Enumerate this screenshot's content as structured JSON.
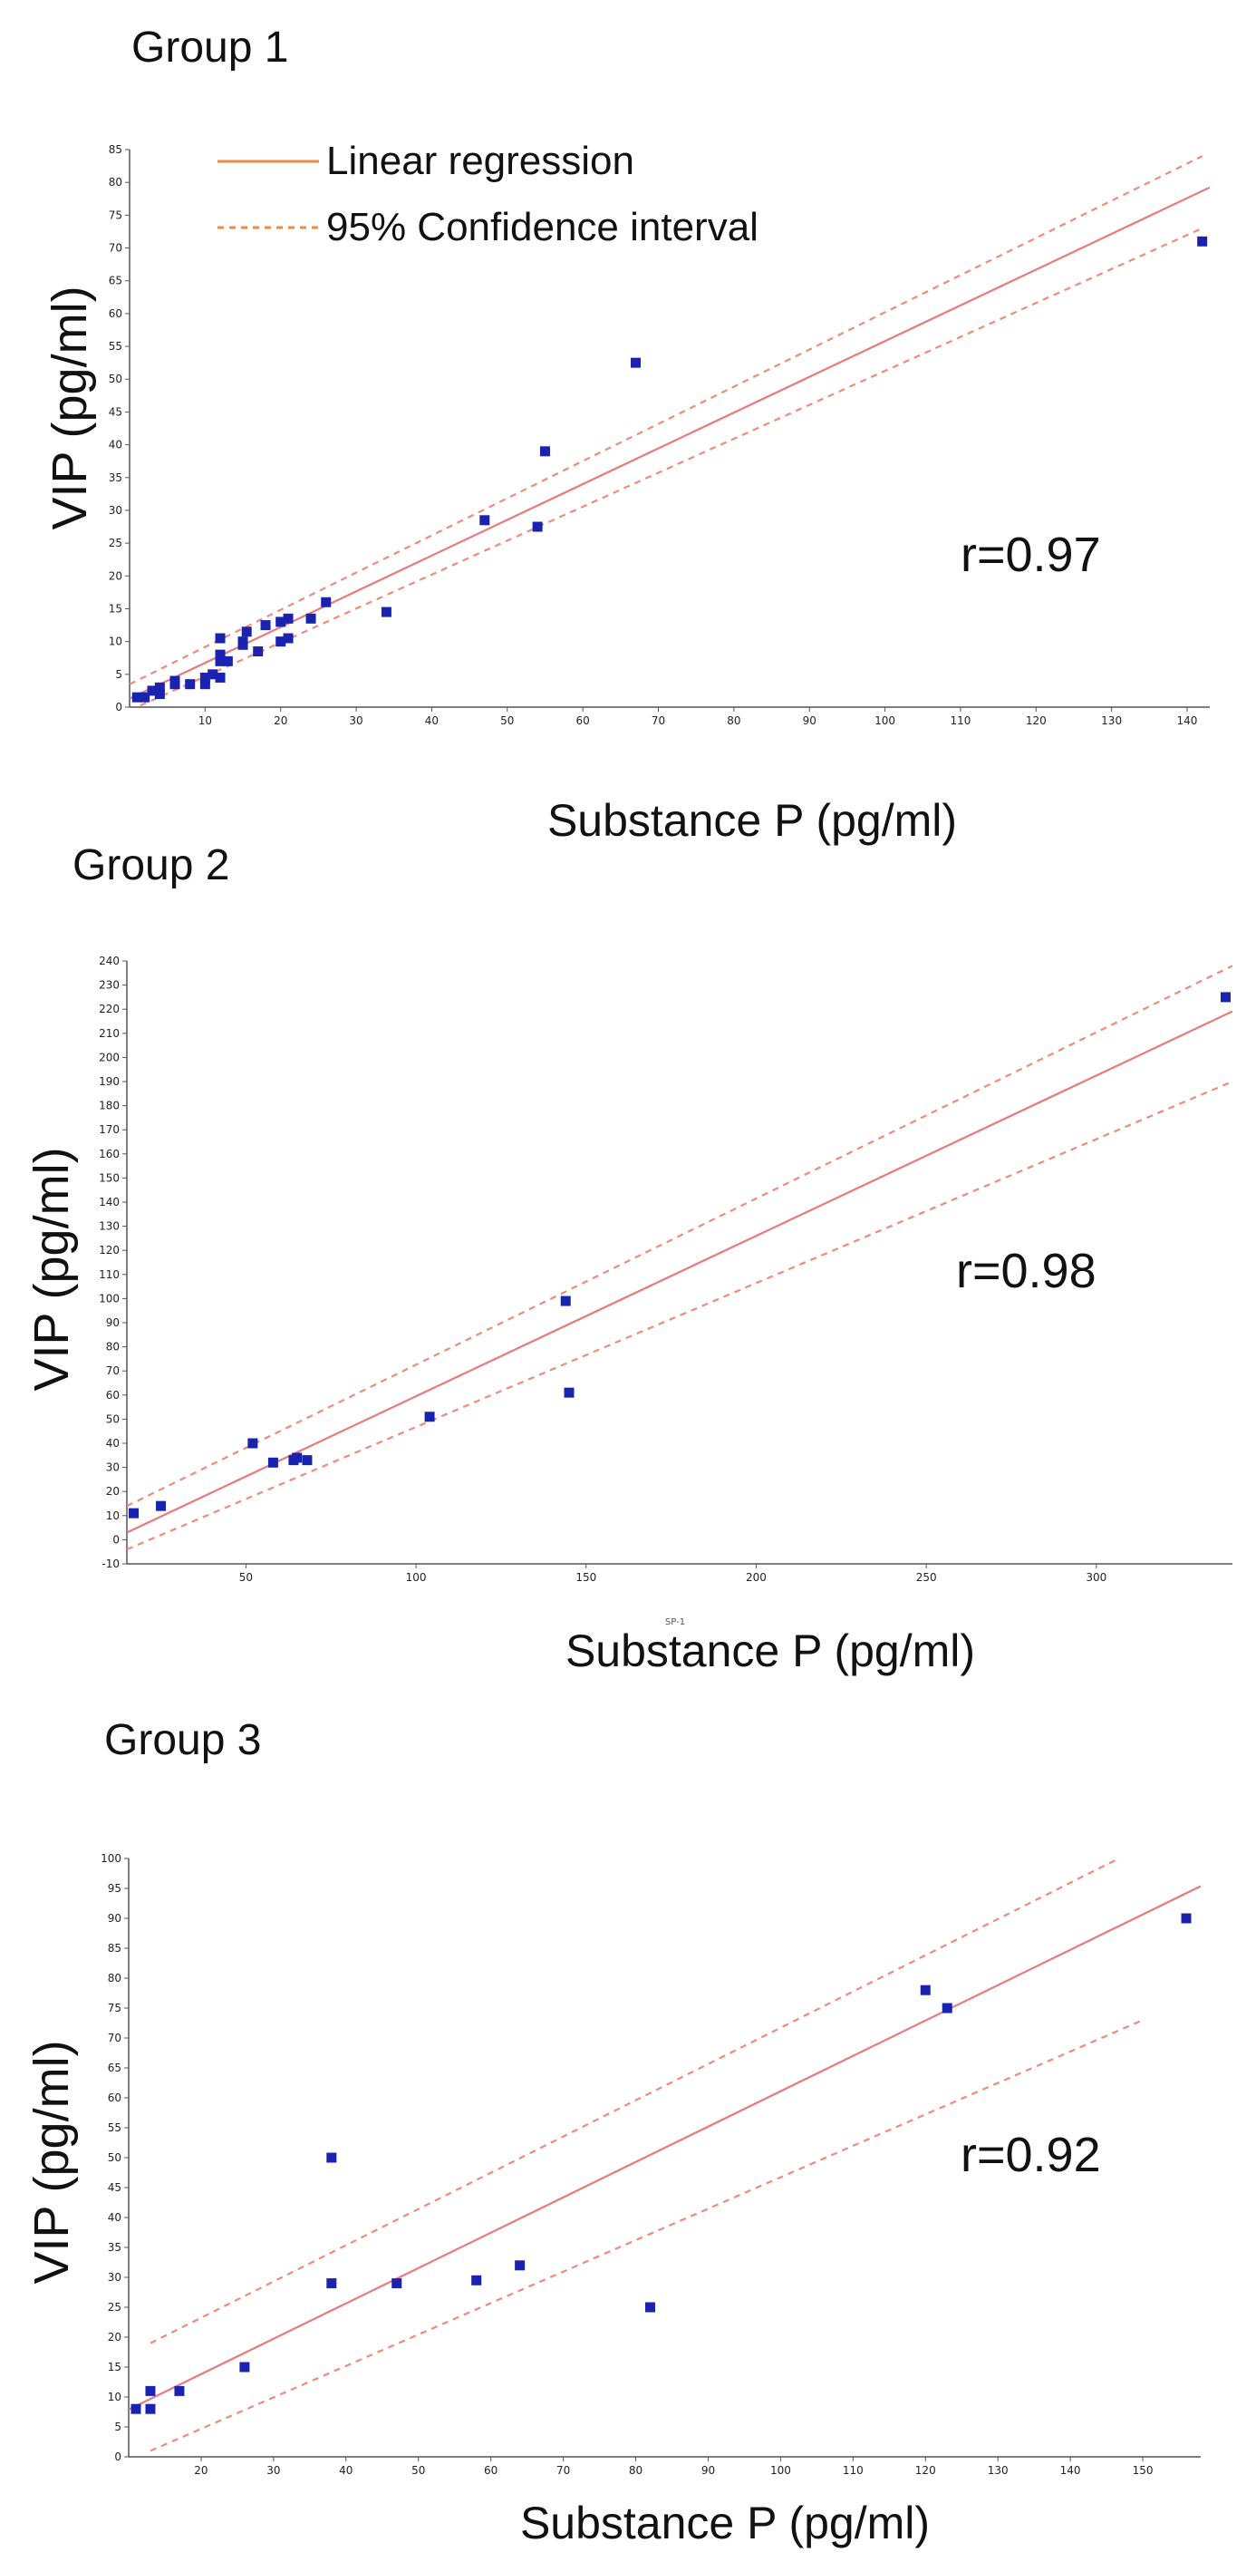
{
  "chart_data": [
    {
      "type": "scatter",
      "title": "Group 1",
      "xlabel": "Substance P (pg/ml)",
      "ylabel": "VIP (pg/ml)",
      "annotation": "r=0.97",
      "legend": {
        "position": "top-left",
        "entries": [
          "Linear regression",
          "95% Confidence interval"
        ]
      },
      "xlim": [
        0,
        143
      ],
      "ylim": [
        0,
        85
      ],
      "xticks": [
        10,
        20,
        30,
        40,
        50,
        60,
        70,
        80,
        90,
        100,
        110,
        120,
        130,
        140
      ],
      "yticks": [
        0,
        5,
        10,
        15,
        20,
        25,
        30,
        35,
        40,
        45,
        50,
        55,
        60,
        65,
        70,
        75,
        80,
        85
      ],
      "points": [
        [
          1,
          1.5
        ],
        [
          2,
          1.5
        ],
        [
          3,
          2.5
        ],
        [
          4,
          3
        ],
        [
          4,
          2
        ],
        [
          6,
          3.5
        ],
        [
          6,
          4
        ],
        [
          8,
          3.5
        ],
        [
          10,
          3.5
        ],
        [
          10,
          4.5
        ],
        [
          11,
          5
        ],
        [
          12,
          4.5
        ],
        [
          12,
          7
        ],
        [
          12,
          7.5
        ],
        [
          12,
          8
        ],
        [
          12,
          10.5
        ],
        [
          13,
          7
        ],
        [
          15,
          9.5
        ],
        [
          15,
          10
        ],
        [
          15.5,
          11.5
        ],
        [
          17,
          8.5
        ],
        [
          18,
          12.5
        ],
        [
          20,
          10
        ],
        [
          20,
          13
        ],
        [
          21,
          10.5
        ],
        [
          21,
          13.5
        ],
        [
          24,
          13.5
        ],
        [
          26,
          16
        ],
        [
          34,
          14.5
        ],
        [
          47,
          28.5
        ],
        [
          54,
          27.5
        ],
        [
          55,
          39
        ],
        [
          67,
          52.5
        ],
        [
          142,
          71
        ]
      ],
      "regression": {
        "slope": 0.545,
        "intercept": 1.3
      },
      "ci_upper": [
        [
          0,
          3.5
        ],
        [
          142,
          84
        ]
      ],
      "ci_lower": [
        [
          0,
          -0.5
        ],
        [
          142,
          73
        ]
      ]
    },
    {
      "type": "scatter",
      "title": "Group 2",
      "xlabel": "Substance P (pg/ml)",
      "xaxis_caption": "SP-1",
      "ylabel": "VIP (pg/ml)",
      "annotation": "r=0.98",
      "xlim": [
        15,
        340
      ],
      "ylim": [
        -10,
        240
      ],
      "xticks": [
        50,
        100,
        150,
        200,
        250,
        300
      ],
      "yticks": [
        -10,
        0,
        10,
        20,
        30,
        40,
        50,
        60,
        70,
        80,
        90,
        100,
        110,
        120,
        130,
        140,
        150,
        160,
        170,
        180,
        190,
        200,
        210,
        220,
        230,
        240
      ],
      "points": [
        [
          17,
          11
        ],
        [
          25,
          14
        ],
        [
          52,
          40
        ],
        [
          58,
          32
        ],
        [
          64,
          33
        ],
        [
          65,
          34
        ],
        [
          68,
          33
        ],
        [
          104,
          51
        ],
        [
          144,
          99
        ],
        [
          145,
          61
        ],
        [
          338,
          225
        ]
      ],
      "regression": {
        "slope": 0.665,
        "intercept": -7
      },
      "ci_upper": [
        [
          15,
          14
        ],
        [
          340,
          238
        ]
      ],
      "ci_lower": [
        [
          15,
          -4
        ],
        [
          340,
          190
        ]
      ]
    },
    {
      "type": "scatter",
      "title": "Group 3",
      "xlabel": "Substance P (pg/ml)",
      "ylabel": "VIP (pg/ml)",
      "annotation": "r=0.92",
      "xlim": [
        10,
        158
      ],
      "ylim": [
        0,
        100
      ],
      "xticks": [
        20,
        30,
        40,
        50,
        60,
        70,
        80,
        90,
        100,
        110,
        120,
        130,
        140,
        150
      ],
      "yticks": [
        0,
        5,
        10,
        15,
        20,
        25,
        30,
        35,
        40,
        45,
        50,
        55,
        60,
        65,
        70,
        75,
        80,
        85,
        90,
        95,
        100
      ],
      "points": [
        [
          11,
          8
        ],
        [
          13,
          8
        ],
        [
          13,
          11
        ],
        [
          17,
          11
        ],
        [
          26,
          15
        ],
        [
          38,
          50
        ],
        [
          38,
          29
        ],
        [
          47,
          29
        ],
        [
          58,
          29.5
        ],
        [
          64,
          32
        ],
        [
          82,
          25
        ],
        [
          120,
          78
        ],
        [
          123,
          75
        ],
        [
          156,
          90
        ]
      ],
      "regression": {
        "slope": 0.591,
        "intercept": 2
      },
      "ci_upper": [
        [
          13,
          19
        ],
        [
          150,
          102
        ]
      ],
      "ci_lower": [
        [
          13,
          1
        ],
        [
          150,
          73
        ]
      ]
    }
  ]
}
